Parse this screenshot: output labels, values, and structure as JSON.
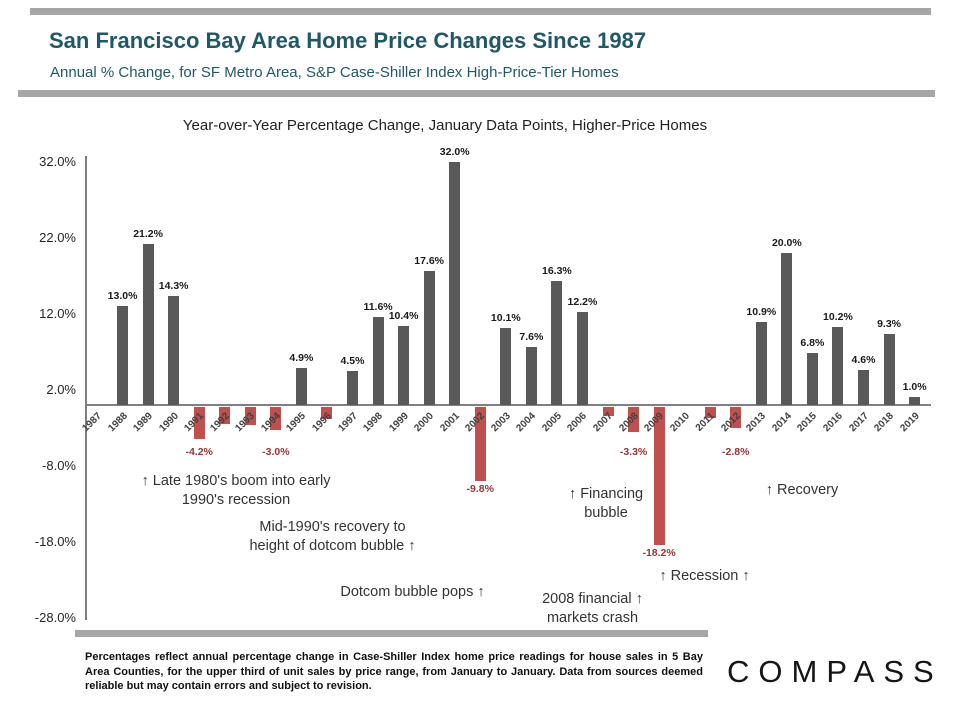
{
  "header": {
    "title": "San Francisco Bay Area Home Price Changes Since 1987",
    "subtitle": "Annual % Change, for SF Metro Area, S&P Case-Shiller Index High-Price-Tier Homes"
  },
  "chart_data": {
    "type": "bar",
    "title": "Year-over-Year Percentage Change, January Data Points, Higher-Price Homes",
    "xlabel": "",
    "ylabel": "",
    "ylim": [
      -28,
      32
    ],
    "grid": false,
    "legend": "none",
    "yticks": [
      {
        "v": 32,
        "label": "32.0%"
      },
      {
        "v": 22,
        "label": "22.0%"
      },
      {
        "v": 12,
        "label": "12.0%"
      },
      {
        "v": 2,
        "label": "2.0%"
      },
      {
        "v": -8,
        "label": "-8.0%"
      },
      {
        "v": -18,
        "label": "-18.0%"
      },
      {
        "v": -28,
        "label": "-28.0%"
      }
    ],
    "categories": [
      1987,
      1988,
      1989,
      1990,
      1991,
      1992,
      1993,
      1994,
      1995,
      1996,
      1997,
      1998,
      1999,
      2000,
      2001,
      2002,
      2003,
      2004,
      2005,
      2006,
      2007,
      2008,
      2009,
      2010,
      2011,
      2012,
      2013,
      2014,
      2015,
      2016,
      2017,
      2018,
      2019
    ],
    "values": [
      null,
      13.0,
      21.2,
      14.3,
      -4.2,
      -2.2,
      -2.4,
      -3.0,
      4.9,
      -1.6,
      4.5,
      11.6,
      10.4,
      17.6,
      32.0,
      -9.8,
      10.1,
      7.6,
      16.3,
      12.2,
      -1.2,
      -3.3,
      -18.2,
      null,
      -1.4,
      -2.8,
      10.9,
      20.0,
      6.8,
      10.2,
      4.6,
      9.3,
      1.0
    ],
    "bar_labels": [
      null,
      "13.0%",
      "21.2%",
      "14.3%",
      "-4.2%",
      null,
      null,
      "-3.0%",
      "4.9%",
      null,
      "4.5%",
      "11.6%",
      "10.4%",
      "17.6%",
      "32.0%",
      "-9.8%",
      "10.1%",
      "7.6%",
      "16.3%",
      "12.2%",
      null,
      "-3.3%",
      "-18.2%",
      null,
      null,
      "-2.8%",
      "10.9%",
      "20.0%",
      "6.8%",
      "10.2%",
      "4.6%",
      "9.3%",
      "1.0%"
    ],
    "positive_color": "#595959",
    "negative_color": "#C0504D",
    "negative_label_color": "#943634",
    "annotations": [
      {
        "id": "late-80s-boom",
        "lines": [
          "↑ Late 1980's boom into early",
          "1990's recession"
        ]
      },
      {
        "id": "mid-90s-recovery",
        "lines": [
          "Mid-1990's recovery to",
          "height of dotcom bubble ↑"
        ]
      },
      {
        "id": "dotcom-pops",
        "lines": [
          "Dotcom bubble pops ↑"
        ]
      },
      {
        "id": "financing-bubble",
        "lines": [
          "↑ Financing",
          "bubble"
        ]
      },
      {
        "id": "recession",
        "lines": [
          "↑ Recession ↑"
        ]
      },
      {
        "id": "financial-crash",
        "lines": [
          "2008 financial ↑",
          "markets crash"
        ]
      },
      {
        "id": "recovery",
        "lines": [
          "↑ Recovery"
        ]
      }
    ]
  },
  "footnote": "Percentages reflect annual percentage change in Case-Shiller Index home price readings for house sales in 5 Bay Area Counties, for the upper third of unit sales by price range, from January to January. Data from sources deemed reliable but may contain errors and subject to revision.",
  "logo": "COMPASS",
  "colors": {
    "accent_teal": "#205867",
    "rule_gray": "#A6A6A6"
  }
}
